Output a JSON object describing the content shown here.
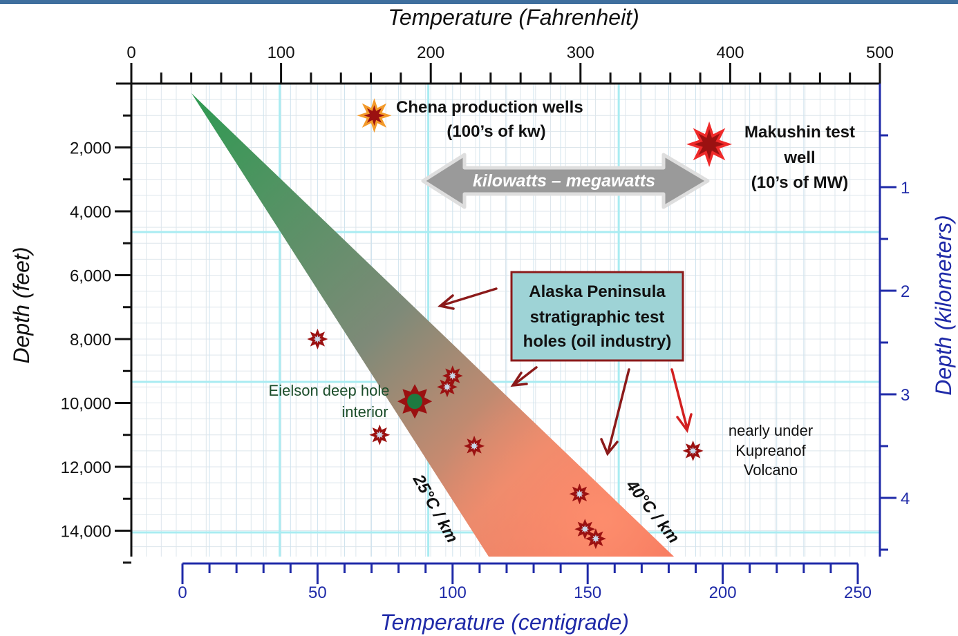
{
  "chart_data": {
    "type": "scatter",
    "title": "",
    "x_top": {
      "label": "Temperature (Fahrenheit)",
      "range": [
        0,
        500
      ],
      "ticks": [
        0,
        100,
        200,
        300,
        400,
        500
      ],
      "tick_labels": [
        "0",
        "100",
        "200",
        "300",
        "400",
        "500"
      ]
    },
    "x_bottom": {
      "label": "Temperature (centigrade)",
      "range": [
        0,
        250
      ],
      "ticks": [
        0,
        50,
        100,
        150,
        200,
        250
      ],
      "tick_labels": [
        "0",
        "50",
        "100",
        "150",
        "200",
        "250"
      ]
    },
    "y_left": {
      "label": "Depth (feet)",
      "range": [
        0,
        15000
      ],
      "ticks": [
        2000,
        4000,
        6000,
        8000,
        10000,
        12000,
        14000
      ],
      "tick_labels": [
        "2,000",
        "4,000",
        "6,000",
        "8,000",
        "10,000",
        "12,000",
        "14,000"
      ]
    },
    "y_right": {
      "label": "Depth (kilometers)",
      "ticks": [
        1,
        2,
        3,
        4
      ],
      "tick_labels": [
        "1",
        "2",
        "3",
        "4"
      ]
    },
    "grid": true,
    "gradient_band": {
      "lower_label": "25°C / km",
      "upper_label": "40°C / km"
    },
    "points": [
      {
        "name": "Chena production wells",
        "x_c": 71,
        "y_ft": 1000,
        "style": "orange-star"
      },
      {
        "name": "Makushin test well",
        "x_c": 195,
        "y_ft": 1900,
        "style": "red-star"
      },
      {
        "name": "Eielson deep hole",
        "x_c": 86,
        "y_ft": 9950,
        "style": "green-star"
      },
      {
        "name": "stratigraphic test hole",
        "x_c": 50,
        "y_ft": 8000,
        "style": "small-star"
      },
      {
        "name": "stratigraphic test hole",
        "x_c": 100,
        "y_ft": 9150,
        "style": "small-star"
      },
      {
        "name": "stratigraphic test hole",
        "x_c": 98,
        "y_ft": 9500,
        "style": "small-star"
      },
      {
        "name": "stratigraphic test hole",
        "x_c": 73,
        "y_ft": 11000,
        "style": "small-star"
      },
      {
        "name": "stratigraphic test hole",
        "x_c": 108,
        "y_ft": 11350,
        "style": "small-star"
      },
      {
        "name": "stratigraphic test hole",
        "x_c": 147,
        "y_ft": 12850,
        "style": "small-star"
      },
      {
        "name": "stratigraphic test hole",
        "x_c": 149,
        "y_ft": 13950,
        "style": "small-star"
      },
      {
        "name": "stratigraphic test hole",
        "x_c": 153,
        "y_ft": 14250,
        "style": "small-star"
      },
      {
        "name": "Kupreanof Volcano hole",
        "x_c": 189,
        "y_ft": 11500,
        "style": "small-star"
      }
    ]
  },
  "annotations": {
    "chena_line1": "Chena production wells",
    "chena_line2": "(100’s of kw)",
    "makushin_line1": "Makushin test",
    "makushin_line2": "well",
    "makushin_line3": "(10’s of MW)",
    "range_arrow": "kilowatts  –  megawatts",
    "alaska_line1": "Alaska Peninsula",
    "alaska_line2": "stratigraphic test",
    "alaska_line3": "holes (oil industry)",
    "eielson_line1": "Eielson deep hole",
    "eielson_line2": "interior",
    "kupreanof_line1": "nearly under",
    "kupreanof_line2": "Kupreanof",
    "kupreanof_line3": "Volcano"
  },
  "colors": {
    "grid": "#cfe3ee",
    "grid_major": "#a9ecf2",
    "axis_blue": "#1f2aa8",
    "band_green": "#3aa45a",
    "band_salmon": "#f07a5c",
    "star_dark": "#9b1111",
    "box_fill": "#9ed3d6",
    "box_border": "#8b1a1a",
    "arrow_grey": "#9a9a9a"
  }
}
